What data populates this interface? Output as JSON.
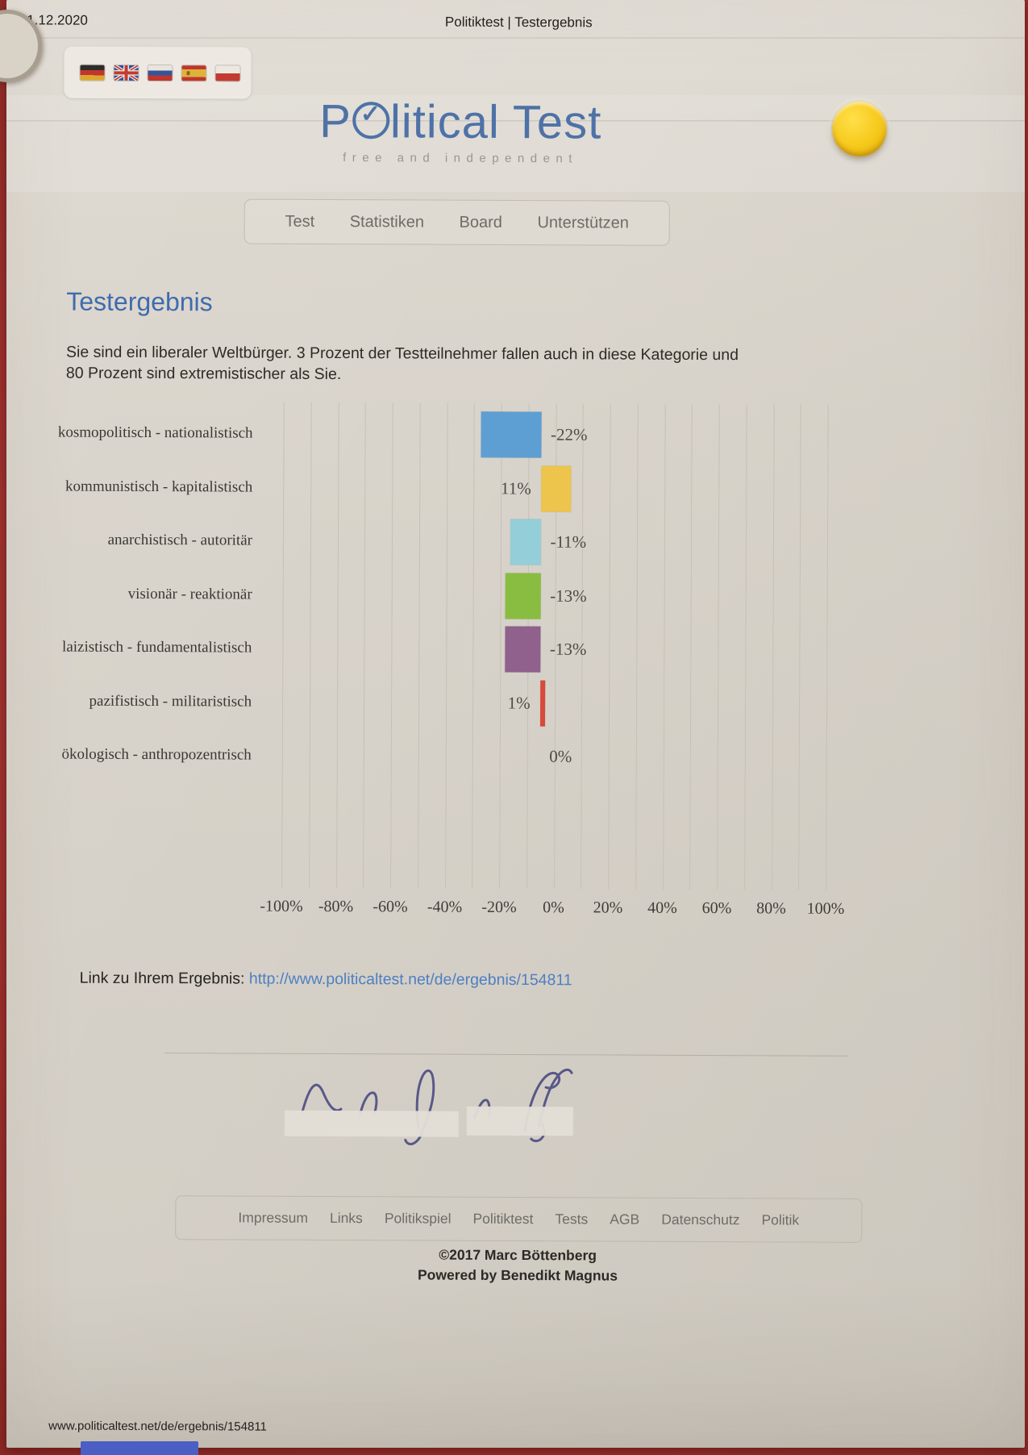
{
  "print_header": {
    "date": "31.12.2020",
    "title": "Politiktest | Testergebnis"
  },
  "site": {
    "language_flags": [
      "german-flag",
      "uk-flag",
      "russian-flag",
      "spanish-flag",
      "polish-flag"
    ],
    "logo": {
      "prefix": "P",
      "check_glyph": "✓",
      "suffix": "litical Test",
      "subtitle": "free and independent"
    },
    "nav_items": [
      "Test",
      "Statistiken",
      "Board",
      "Unterstützen"
    ],
    "heading": "Testergebnis",
    "intro_line1": "Sie sind ein liberaler Weltbürger. 3 Prozent der Testteilnehmer fallen auch in diese Kategorie und",
    "intro_line2": "80 Prozent sind extremistischer als Sie.",
    "result_link_label": "Link zu Ihrem Ergebnis:",
    "result_link_url": "http://www.politicaltest.net/de/ergebnis/154811",
    "footer_links": [
      "Impressum",
      "Links",
      "Politikspiel",
      "Politiktest",
      "Tests",
      "AGB",
      "Datenschutz",
      "Politik"
    ],
    "copyright": "©2017 Marc Böttenberg",
    "powered_by": "Powered by Benedikt Magnus"
  },
  "chart_data": {
    "type": "bar",
    "orientation": "horizontal",
    "title": "",
    "categories": [
      "kosmopolitisch - nationalistisch",
      "kommunistisch - kapitalistisch",
      "anarchistisch - autoritär",
      "visionär - reaktionär",
      "laizistisch - fundamentalistisch",
      "pazifistisch - militaristisch",
      "ökologisch - anthropozentrisch"
    ],
    "values": [
      -22,
      11,
      -11,
      -13,
      -13,
      1,
      0
    ],
    "value_labels": [
      "-22%",
      "11%",
      "-11%",
      "-13%",
      "-13%",
      "1%",
      "0%"
    ],
    "bar_colors": [
      "#5e9fd3",
      "#edc44c",
      "#94ced8",
      "#88bd41",
      "#8f618c",
      "#d8493a",
      "#d8493a"
    ],
    "xlim": [
      -100,
      100
    ],
    "x_ticks": [
      -100,
      -80,
      -60,
      -40,
      -20,
      0,
      20,
      40,
      60,
      80,
      100
    ],
    "x_tick_labels": [
      "-100%",
      "-80%",
      "-60%",
      "-40%",
      "-20%",
      "0%",
      "20%",
      "40%",
      "60%",
      "80%",
      "100%"
    ],
    "gridline_step": 10,
    "grid": true,
    "legend": false
  },
  "print_footer": {
    "url": "www.politicaltest.net/de/ergebnis/154811"
  },
  "photo": {
    "board_color": "#a43431",
    "pin_color": "#f6c81a",
    "logo_blue": "#4e72a7",
    "heading_blue": "#3e6cae",
    "link_blue": "#4e7fc2"
  }
}
